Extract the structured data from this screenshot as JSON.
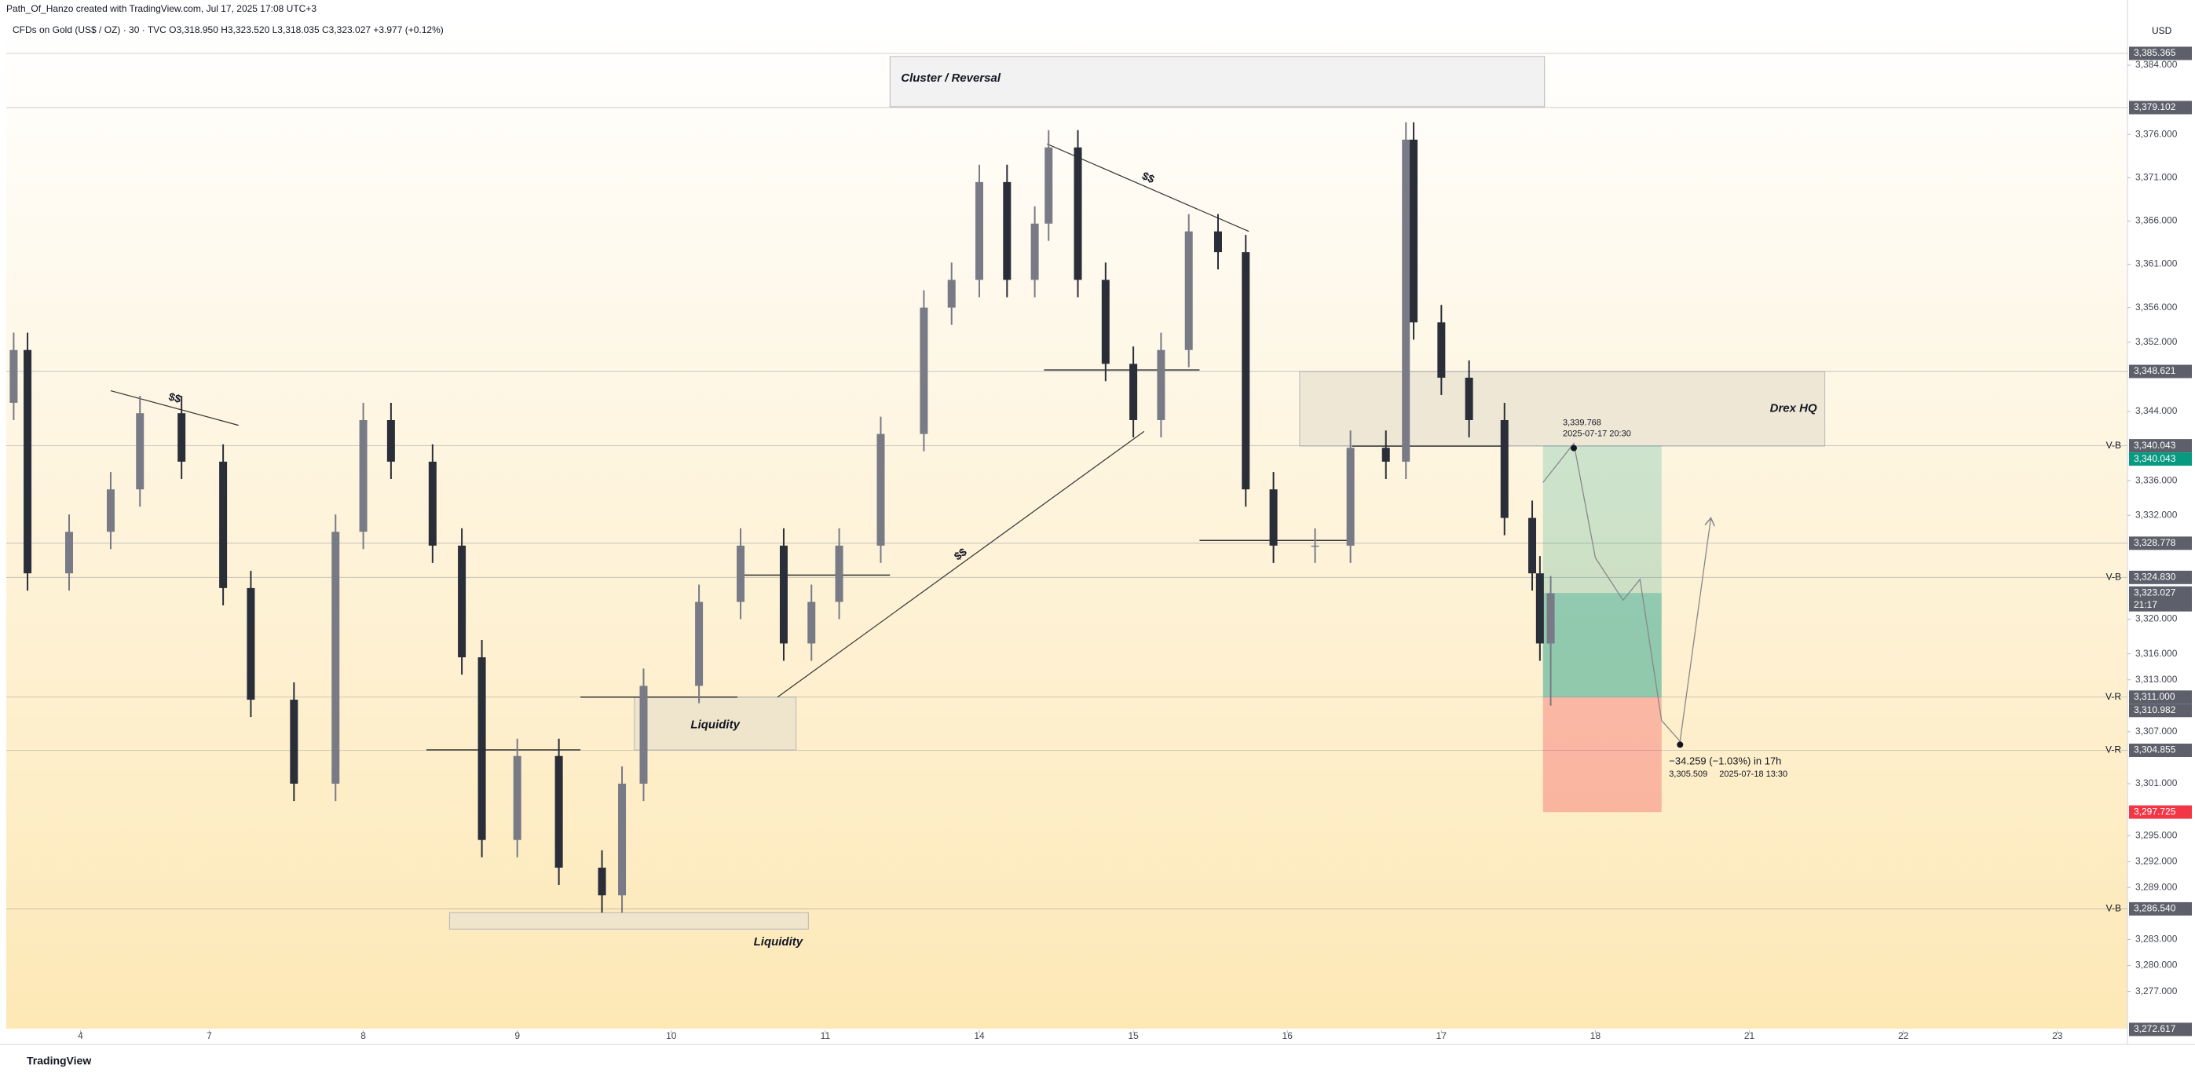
{
  "chart_data": {
    "type": "candlestick",
    "header": "Path_Of_Hanzo created with TradingView.com, Jul 17, 2025 17:08 UTC+3",
    "legend": "CFDs on Gold (US$ / OZ) · 30 · TVC  O3,318.950  H3,323.520  L3,318.035  C3,323.027  +3.977 (+0.12%)",
    "currency": "USD",
    "footer": "TradingView",
    "up_color": "#787b86",
    "down_color": "#2a2e39",
    "x": [
      -0.27,
      -0.18,
      0.09,
      0.36,
      0.55,
      0.82,
      1.09,
      1.27,
      1.55,
      1.82,
      2.0,
      2.18,
      2.45,
      2.64,
      2.77,
      3.0,
      3.27,
      3.55,
      3.68,
      3.82,
      4.18,
      4.45,
      4.73,
      4.91,
      5.09,
      5.36,
      5.64,
      5.82,
      6.0,
      6.18,
      6.36,
      6.45,
      6.64,
      6.82,
      7.0,
      7.18,
      7.36,
      7.55,
      7.73,
      7.91,
      8.18,
      8.41,
      8.64,
      8.77,
      8.82,
      9.0,
      9.18,
      9.41,
      9.59,
      9.64,
      9.71
    ],
    "open": [
      3345.0,
      3351.1,
      3325.3,
      3330.1,
      3335.0,
      3343.8,
      3338.2,
      3323.6,
      3310.7,
      3301.0,
      3330.1,
      3343.0,
      3338.2,
      3328.5,
      3315.6,
      3294.5,
      3304.2,
      3291.3,
      3288.1,
      3301.0,
      3312.3,
      3322.0,
      3328.5,
      3317.2,
      3322.0,
      3328.5,
      3341.4,
      3356.0,
      3359.2,
      3370.5,
      3359.2,
      3365.7,
      3374.5,
      3359.2,
      3349.5,
      3343.0,
      3351.1,
      3364.8,
      3362.4,
      3335.0,
      3328.5,
      3328.5,
      3339.8,
      3338.2,
      3375.4,
      3354.3,
      3347.9,
      3343.0,
      3331.7,
      3325.3,
      3317.2
    ],
    "high": [
      3353.1,
      3353.1,
      3332.1,
      3337.0,
      3345.8,
      3345.8,
      3340.2,
      3325.6,
      3312.7,
      3332.1,
      3345.0,
      3345.0,
      3340.2,
      3330.5,
      3317.6,
      3306.2,
      3306.2,
      3293.3,
      3303.0,
      3314.3,
      3324.0,
      3330.5,
      3330.5,
      3324.0,
      3330.5,
      3343.4,
      3358.0,
      3361.2,
      3372.5,
      3372.5,
      3367.7,
      3376.5,
      3376.5,
      3361.2,
      3351.5,
      3353.1,
      3366.8,
      3366.8,
      3364.4,
      3337.0,
      3330.5,
      3341.8,
      3341.8,
      3377.4,
      3377.4,
      3356.3,
      3349.9,
      3345.0,
      3333.7,
      3327.3,
      3325.0
    ],
    "low": [
      3343.0,
      3323.3,
      3323.3,
      3328.1,
      3333.0,
      3336.2,
      3321.6,
      3308.7,
      3299.0,
      3299.0,
      3328.1,
      3336.2,
      3326.5,
      3313.6,
      3292.5,
      3292.5,
      3289.3,
      3286.1,
      3286.1,
      3299.0,
      3310.3,
      3320.0,
      3315.2,
      3315.2,
      3320.0,
      3326.5,
      3339.4,
      3354.0,
      3357.2,
      3357.2,
      3357.2,
      3363.7,
      3357.2,
      3347.5,
      3341.0,
      3341.0,
      3349.1,
      3360.4,
      3333.0,
      3326.5,
      3326.5,
      3326.5,
      3336.2,
      3336.2,
      3352.3,
      3345.9,
      3341.0,
      3329.7,
      3323.3,
      3315.2,
      3310.0
    ],
    "close": [
      3351.1,
      3325.3,
      3330.1,
      3335.0,
      3343.8,
      3338.2,
      3323.6,
      3310.7,
      3301.0,
      3330.1,
      3343.0,
      3338.2,
      3328.5,
      3315.6,
      3294.5,
      3304.2,
      3291.3,
      3288.1,
      3301.0,
      3312.3,
      3322.0,
      3328.5,
      3317.2,
      3322.0,
      3328.5,
      3341.4,
      3356.0,
      3359.2,
      3370.5,
      3359.2,
      3365.7,
      3374.5,
      3359.2,
      3349.5,
      3343.0,
      3351.1,
      3364.8,
      3362.4,
      3335.0,
      3328.5,
      3328.5,
      3339.8,
      3338.2,
      3375.4,
      3354.3,
      3347.9,
      3343.0,
      3331.7,
      3325.3,
      3317.2,
      3323.0
    ],
    "xlim": [
      -0.318,
      13.455
    ],
    "xticks": [
      {
        "value": 0.164,
        "label": "4"
      },
      {
        "value": 1,
        "label": "7"
      },
      {
        "value": 2,
        "label": "8"
      },
      {
        "value": 3,
        "label": "9"
      },
      {
        "value": 4,
        "label": "10"
      },
      {
        "value": 5,
        "label": "11"
      },
      {
        "value": 6,
        "label": "14"
      },
      {
        "value": 7,
        "label": "15"
      },
      {
        "value": 8,
        "label": "16"
      },
      {
        "value": 9,
        "label": "17"
      },
      {
        "value": 10,
        "label": "18"
      },
      {
        "value": 11,
        "label": "21"
      },
      {
        "value": 12,
        "label": "22"
      },
      {
        "value": 13,
        "label": "23"
      }
    ],
    "ylim": [
      3272.7,
      3388.9
    ],
    "yticks": [
      {
        "value": 3384,
        "label": "3,384.000"
      },
      {
        "value": 3376,
        "label": "3,376.000"
      },
      {
        "value": 3371,
        "label": "3,371.000"
      },
      {
        "value": 3366,
        "label": "3,366.000"
      },
      {
        "value": 3361,
        "label": "3,361.000"
      },
      {
        "value": 3356,
        "label": "3,356.000"
      },
      {
        "value": 3352,
        "label": "3,352.000"
      },
      {
        "value": 3344,
        "label": "3,344.000"
      },
      {
        "value": 3336,
        "label": "3,336.000"
      },
      {
        "value": 3332,
        "label": "3,332.000"
      },
      {
        "value": 3320,
        "label": "3,320.000"
      },
      {
        "value": 3316,
        "label": "3,316.000"
      },
      {
        "value": 3313,
        "label": "3,313.000"
      },
      {
        "value": 3307,
        "label": "3,307.000"
      },
      {
        "value": 3301,
        "label": "3,301.000"
      },
      {
        "value": 3295,
        "label": "3,295.000"
      },
      {
        "value": 3292,
        "label": "3,292.000"
      },
      {
        "value": 3289,
        "label": "3,289.000"
      },
      {
        "value": 3283,
        "label": "3,283.000"
      },
      {
        "value": 3280,
        "label": "3,280.000"
      },
      {
        "value": 3277,
        "label": "3,277.000"
      }
    ],
    "price_levels": [
      {
        "value": 3385.365,
        "label": "3,385.365",
        "color": "#5d606b",
        "line": true
      },
      {
        "value": 3379.102,
        "label": "3,379.102",
        "color": "#5d606b",
        "line": true
      },
      {
        "value": 3348.621,
        "label": "3,348.621",
        "color": "#5d606b",
        "line": true
      },
      {
        "value": 3340.043,
        "label": "3,340.043",
        "color": "#5d606b",
        "line": true,
        "tag": "V-B"
      },
      {
        "value": 3340.043,
        "label": "3,340.043",
        "color": "#089981",
        "line": false
      },
      {
        "value": 3328.778,
        "label": "3,328.778",
        "color": "#5d606b",
        "line": true
      },
      {
        "value": 3324.83,
        "label": "3,324.830",
        "color": "#5d606b",
        "line": true,
        "tag": "V-B"
      },
      {
        "value": 3323.027,
        "label": "3,323.027",
        "color": "#5d606b",
        "line": false,
        "sub": "21:17"
      },
      {
        "value": 3311.0,
        "label": "3,311.000",
        "color": "#5d606b",
        "line": true,
        "tag": "V-R"
      },
      {
        "value": 3310.982,
        "label": "3,310.982",
        "color": "#5d606b",
        "line": false
      },
      {
        "value": 3304.855,
        "label": "3,304.855",
        "color": "#5d606b",
        "line": true,
        "tag": "V-R"
      },
      {
        "value": 3297.725,
        "label": "3,297.725",
        "color": "#f23645",
        "line": false
      },
      {
        "value": 3286.54,
        "label": "3,286.540",
        "color": "#5d606b",
        "line": true,
        "tag": "V-B"
      },
      {
        "value": 3272.617,
        "label": "3,272.617",
        "color": "#5d606b",
        "line": false
      }
    ],
    "zones": [
      {
        "label": "Cluster / Reversal",
        "x0": 5.42,
        "x1": 9.67,
        "top": 3385.0,
        "bottom": 3379.2,
        "color": "#f2f2f2",
        "label_pos": "left"
      },
      {
        "label": "Drex HQ",
        "x0": 8.08,
        "x1": 11.49,
        "top": 3348.6,
        "bottom": 3340.0,
        "color": "#efe7d6",
        "label_pos": "right"
      },
      {
        "label": "Liquidity",
        "x0": 3.76,
        "x1": 4.81,
        "top": 3311.0,
        "bottom": 3304.9,
        "color": "#efe4cc",
        "label_pos": "center"
      },
      {
        "label": "Liquidity",
        "x0": 2.56,
        "x1": 4.89,
        "top": 3286.1,
        "bottom": 3284.2,
        "color": "#efe4cc",
        "label_pos": "below"
      }
    ],
    "trendlines": [
      {
        "label": "$$",
        "x0": 0.36,
        "x1": 1.19,
        "y0": 3346.4,
        "y1": 3342.4
      },
      {
        "label": "$$",
        "x0": 6.44,
        "x1": 7.75,
        "y0": 3374.9,
        "y1": 3364.8
      },
      {
        "label": "$$",
        "x0": 4.69,
        "x1": 7.07,
        "y0": 3311.0,
        "y1": 3341.7
      }
    ],
    "poc_lines": [
      {
        "x0": 2.41,
        "x1": 3.41,
        "price": 3304.9
      },
      {
        "x0": 3.41,
        "x1": 4.43,
        "price": 3311.0
      },
      {
        "x0": 4.43,
        "x1": 5.42,
        "price": 3325.1
      },
      {
        "x0": 6.42,
        "x1": 7.43,
        "price": 3348.8
      },
      {
        "x0": 7.43,
        "x1": 8.42,
        "price": 3329.1
      },
      {
        "x0": 8.42,
        "x1": 9.43,
        "price": 3340.0
      }
    ],
    "position": {
      "x0": 9.66,
      "x1": 10.43,
      "entry": 3311.0,
      "target": 3340.043,
      "stop": 3297.725,
      "current": 3323.027
    },
    "projection": {
      "x": [
        9.66,
        9.86,
        10.0,
        10.18,
        10.29,
        10.43,
        10.55,
        10.75
      ],
      "prices": [
        3335.8,
        3340.3,
        3327.1,
        3322.2,
        3324.6,
        3308.3,
        3305.9,
        3331.7
      ]
    },
    "callouts": [
      {
        "x": 9.86,
        "price": 3339.768,
        "label": "3,339.768",
        "time": "2025-07-17 20:30"
      },
      {
        "x": 10.55,
        "price": 3305.509,
        "label": "3,305.509",
        "time": "2025-07-18 13:30",
        "change": "−34.259 (−1.03%) in 17h"
      }
    ]
  }
}
